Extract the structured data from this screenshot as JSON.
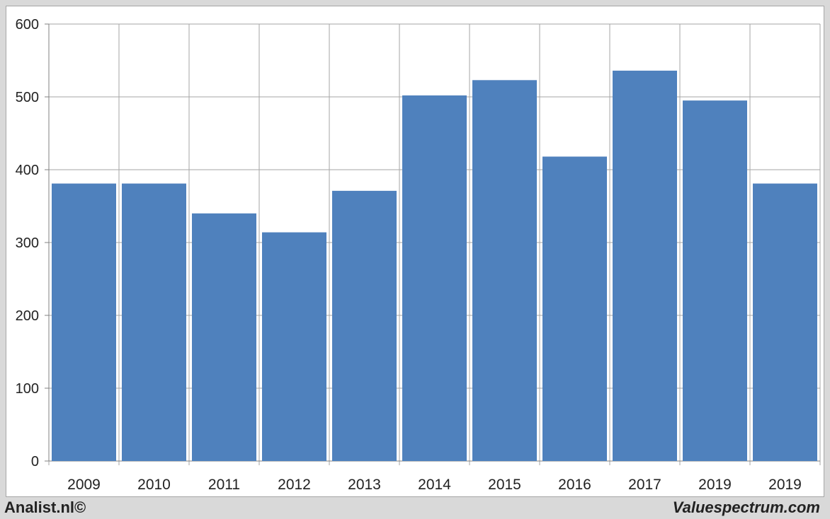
{
  "chart_data": {
    "type": "bar",
    "title": "",
    "xlabel": "",
    "ylabel": "",
    "categories": [
      "2009",
      "2010",
      "2011",
      "2012",
      "2013",
      "2014",
      "2015",
      "2016",
      "2017",
      "2019",
      "2019"
    ],
    "values": [
      381,
      381,
      340,
      314,
      371,
      502,
      523,
      418,
      536,
      495,
      381
    ],
    "ylim": [
      0,
      600
    ],
    "yticks": [
      "0",
      "100",
      "200",
      "300",
      "400",
      "500",
      "600"
    ],
    "grid": true,
    "legend": "none",
    "colors": {
      "bar": "#4f81bd",
      "grid": "#a6a6a6",
      "axis": "#808080",
      "text": "#222222"
    }
  },
  "footer": {
    "left": "Analist.nl©",
    "right": "Valuespectrum.com"
  }
}
